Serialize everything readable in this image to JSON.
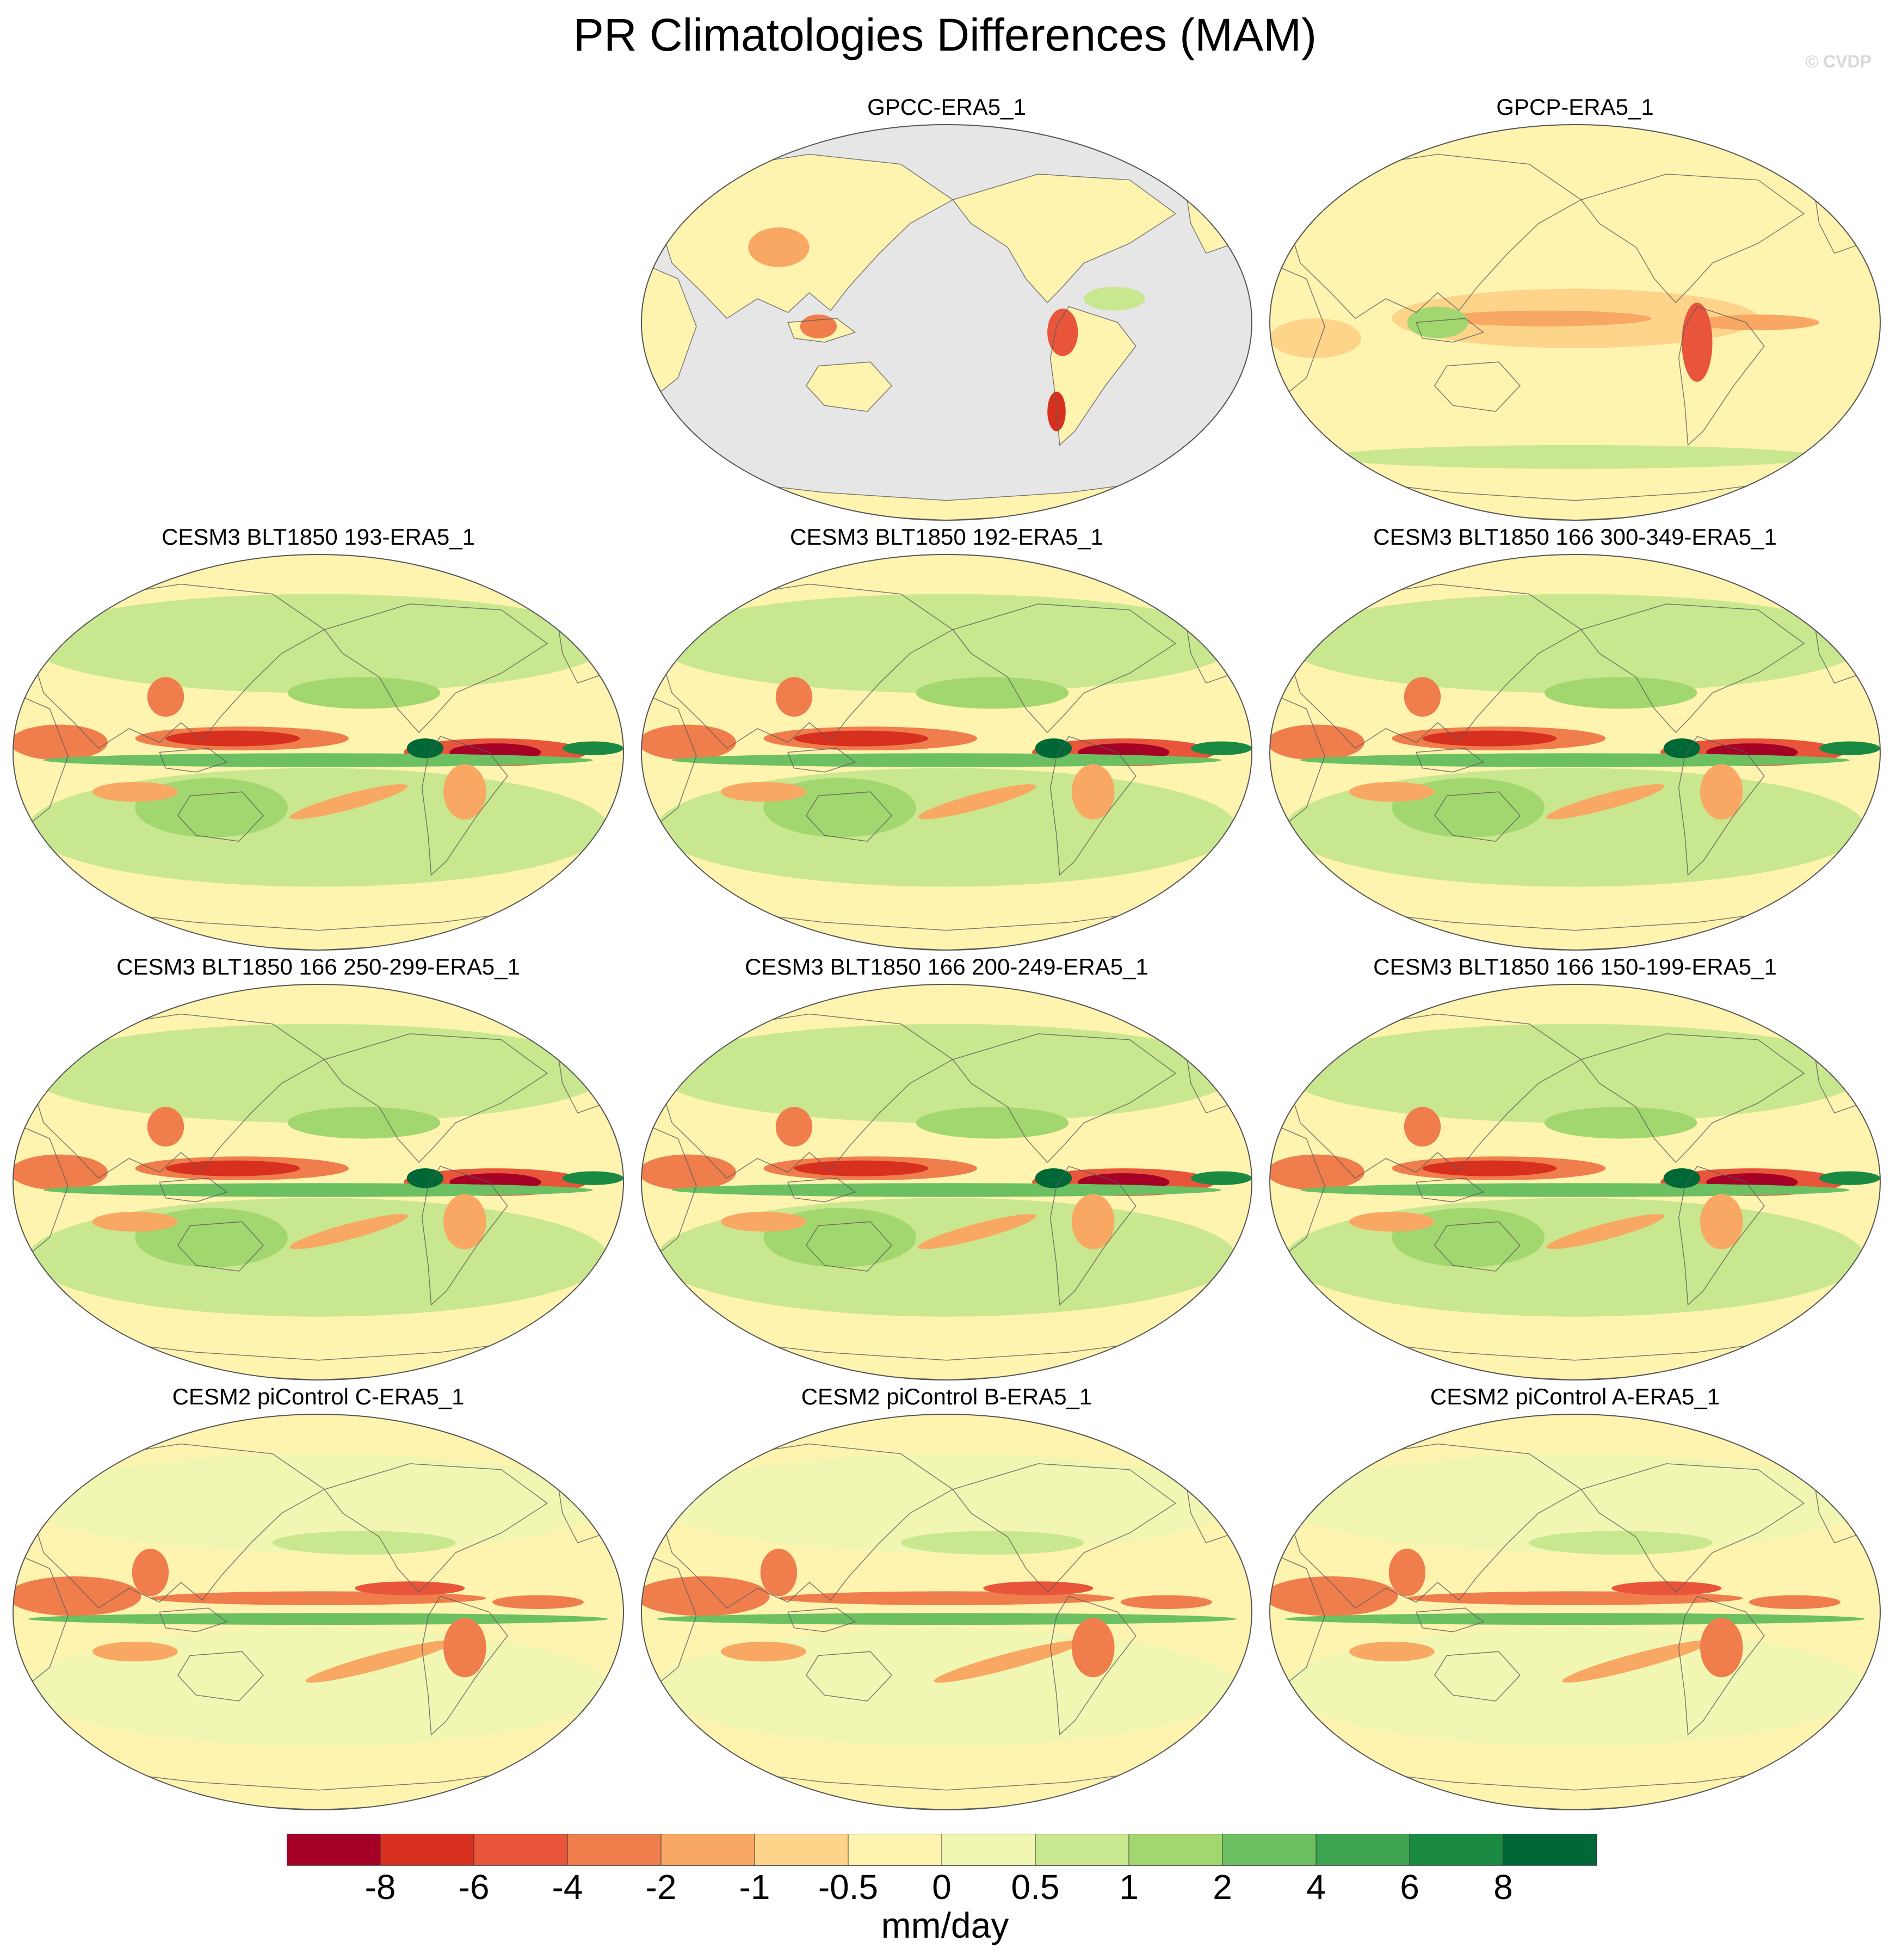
{
  "title": "PR Climatologies Differences (MAM)",
  "watermark": "© CVDP",
  "panels": [
    {
      "title": "GPCC-ERA5_1",
      "pattern": "gpcc",
      "land_only": true
    },
    {
      "title": "GPCP-ERA5_1",
      "pattern": "gpcp",
      "land_only": false
    },
    {
      "title": "CESM3 BLT1850 193-ERA5_1",
      "pattern": "model",
      "land_only": false
    },
    {
      "title": "CESM3 BLT1850 192-ERA5_1",
      "pattern": "model",
      "land_only": false
    },
    {
      "title": "CESM3 BLT1850 166 300-349-ERA5_1",
      "pattern": "model",
      "land_only": false
    },
    {
      "title": "CESM3 BLT1850 166 250-299-ERA5_1",
      "pattern": "model",
      "land_only": false
    },
    {
      "title": "CESM3 BLT1850 166 200-249-ERA5_1",
      "pattern": "model",
      "land_only": false
    },
    {
      "title": "CESM3 BLT1850 166 150-199-ERA5_1",
      "pattern": "model",
      "land_only": false
    },
    {
      "title": "CESM2 piControl C-ERA5_1",
      "pattern": "cesm2",
      "land_only": false
    },
    {
      "title": "CESM2 piControl B-ERA5_1",
      "pattern": "cesm2",
      "land_only": false
    },
    {
      "title": "CESM2 piControl A-ERA5_1",
      "pattern": "cesm2",
      "land_only": false
    }
  ],
  "colorbar": {
    "unit": "mm/day",
    "tick_labels": [
      "-8",
      "-6",
      "-4",
      "-2",
      "-1",
      "-0.5",
      "0",
      "0.5",
      "1",
      "2",
      "4",
      "6",
      "8"
    ],
    "colors": [
      "#a50026",
      "#d7301f",
      "#e8553a",
      "#f07e4d",
      "#f9a864",
      "#fdd48a",
      "#fff3b0",
      "#f1f7b3",
      "#c9e78f",
      "#a2d76f",
      "#6cc062",
      "#3ea452",
      "#1a8a42",
      "#006837"
    ]
  },
  "land_color": "#e6e6e6"
}
